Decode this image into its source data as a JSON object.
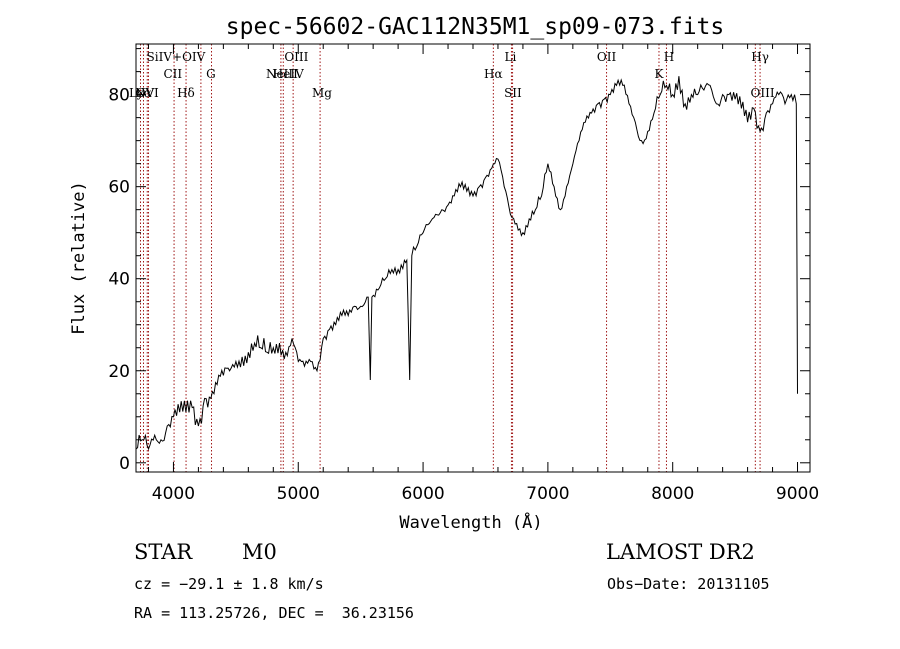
{
  "chart_data": {
    "type": "line",
    "title": "spec-56602-GAC112N35M1_sp09-073.fits",
    "xlabel": "Wavelength (Å)",
    "ylabel": "Flux (relative)",
    "xlim": [
      3700,
      9100
    ],
    "ylim": [
      -2,
      91
    ],
    "xticks": [
      4000,
      5000,
      6000,
      7000,
      8000,
      9000
    ],
    "yticks": [
      0,
      20,
      40,
      60,
      80
    ],
    "grid": false,
    "series": [
      {
        "x": [
          3700,
          3750,
          3800,
          3850,
          3900,
          3950,
          4000,
          4050,
          4100,
          4150,
          4200,
          4250,
          4300,
          4350,
          4400,
          4450,
          4500,
          4550,
          4600,
          4650,
          4700,
          4750,
          4800,
          4850,
          4900,
          4950,
          5000,
          5050,
          5100,
          5150,
          5200,
          5250,
          5300,
          5350,
          5400,
          5450,
          5500,
          5550,
          5560,
          5577,
          5590,
          5650,
          5700,
          5750,
          5800,
          5850,
          5870,
          5893,
          5910,
          5950,
          6000,
          6050,
          6100,
          6150,
          6200,
          6250,
          6300,
          6350,
          6400,
          6450,
          6500,
          6550,
          6600,
          6650,
          6700,
          6750,
          6800,
          6850,
          6900,
          6950,
          7000,
          7050,
          7100,
          7150,
          7200,
          7250,
          7300,
          7350,
          7400,
          7450,
          7500,
          7550,
          7600,
          7650,
          7700,
          7750,
          7800,
          7850,
          7900,
          7950,
          8000,
          8050,
          8100,
          8150,
          8200,
          8250,
          8300,
          8350,
          8400,
          8450,
          8500,
          8550,
          8600,
          8650,
          8700,
          8750,
          8800,
          8850,
          8900,
          8950,
          8990,
          9000
        ],
        "y": [
          3,
          5,
          3,
          6,
          5,
          8,
          10,
          11,
          11,
          12,
          8,
          14,
          14,
          17,
          19,
          20,
          22,
          23,
          24,
          26,
          25,
          24,
          25,
          26,
          24,
          27,
          22,
          21,
          22,
          20,
          27,
          29,
          30,
          32,
          32,
          34,
          34,
          36,
          36,
          18,
          36,
          38,
          40,
          42,
          42,
          44,
          44,
          18,
          45,
          47,
          50,
          52,
          54,
          55,
          56,
          58,
          60,
          59,
          58,
          60,
          62,
          64,
          66,
          60,
          54,
          52,
          50,
          53,
          55,
          58,
          65,
          60,
          55,
          60,
          65,
          70,
          74,
          76,
          78,
          79,
          80,
          82,
          82,
          78,
          74,
          70,
          72,
          76,
          80,
          82,
          80,
          84,
          78,
          80,
          80,
          81,
          82,
          78,
          80,
          80,
          79,
          77,
          74,
          77,
          72,
          76,
          78,
          80,
          78,
          80,
          78,
          15
        ]
      }
    ],
    "line_labels": [
      {
        "text": "NV",
        "x": 3770,
        "row": 3
      },
      {
        "text": "OVI",
        "x": 3790,
        "row": 3
      },
      {
        "text": "Lyα",
        "x": 3735,
        "row": 3
      },
      {
        "text": "SiIV+OIV",
        "x": 4020,
        "row": 1
      },
      {
        "text": "CII",
        "x": 3995,
        "row": 2
      },
      {
        "text": "Hδ",
        "x": 4100,
        "row": 3
      },
      {
        "text": "G",
        "x": 4300,
        "row": 2
      },
      {
        "text": "OIII",
        "x": 4985,
        "row": 1
      },
      {
        "text": "NeIII",
        "x": 4869,
        "row": 2
      },
      {
        "text": "HeIV",
        "x": 4920,
        "row": 2
      },
      {
        "text": "Mg",
        "x": 5190,
        "row": 3
      },
      {
        "text": "Li",
        "x": 6700,
        "row": 1
      },
      {
        "text": "Hα",
        "x": 6563,
        "row": 2
      },
      {
        "text": "SII",
        "x": 6720,
        "row": 3
      },
      {
        "text": "OII",
        "x": 7470,
        "row": 1
      },
      {
        "text": "K",
        "x": 7890,
        "row": 2
      },
      {
        "text": "H",
        "x": 7970,
        "row": 1
      },
      {
        "text": "Hγ",
        "x": 8700,
        "row": 1
      },
      {
        "text": "OIII",
        "x": 8720,
        "row": 3
      }
    ],
    "ref_lines": [
      3736,
      3760,
      3790,
      3800,
      4005,
      4101,
      4220,
      4305,
      4861,
      4880,
      4959,
      5175,
      6563,
      6708,
      6717,
      7470,
      7890,
      7950,
      8662,
      8700
    ]
  },
  "info": {
    "object_class": "STAR",
    "subclass": "M0",
    "survey": "LAMOST DR2",
    "cz": "cz = −29.1 ± 1.8 km/s",
    "obs_date": "Obs−Date: 20131105",
    "coords": "RA = 113.25726, DEC =  36.23156"
  },
  "colors": {
    "ref_line": "#a01818",
    "ink": "#000000"
  }
}
